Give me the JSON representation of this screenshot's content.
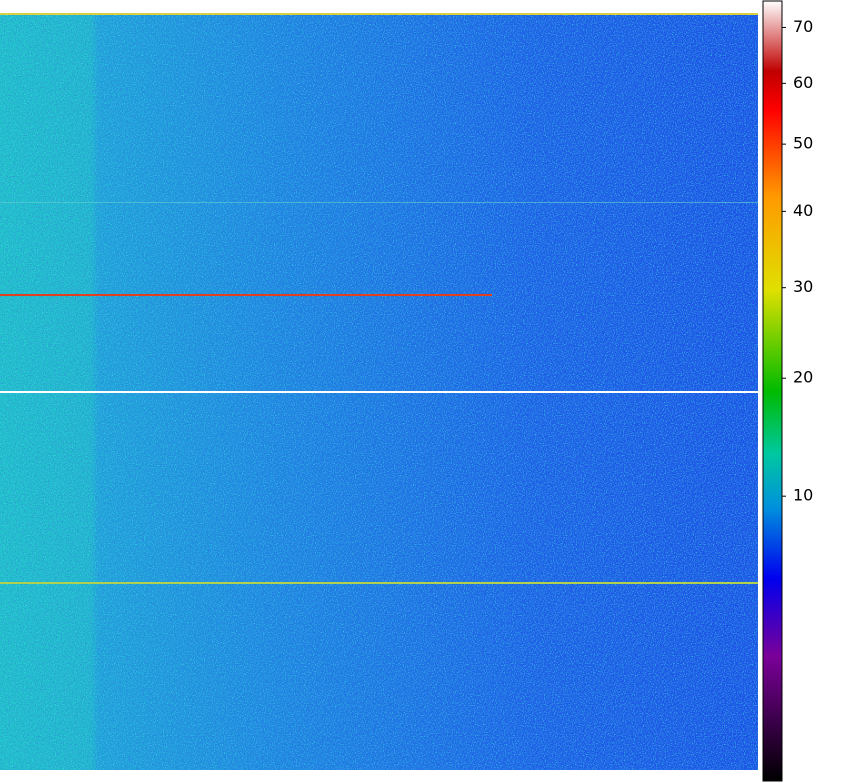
{
  "chart_data": {
    "type": "heatmap",
    "colorbar": {
      "scale": "sqrt",
      "lim": [
        0,
        75
      ],
      "ticks": [
        10,
        20,
        30,
        40,
        50,
        60,
        70
      ],
      "colormap": [
        "#000000",
        "#7a0099",
        "#0000ee",
        "#0090dd",
        "#00c8a0",
        "#00bb00",
        "#e0e000",
        "#ff9900",
        "#ff0000",
        "#c00000",
        "#ffffff"
      ]
    }
  }
}
